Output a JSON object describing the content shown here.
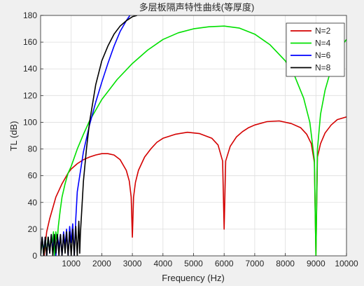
{
  "chart_data": {
    "type": "line",
    "title": "多层板隔声特性曲线(等厚度)",
    "xlabel": "Frequency (Hz)",
    "ylabel": "TL (dB)",
    "xlim": [
      0,
      10000
    ],
    "ylim": [
      0,
      180
    ],
    "xticks": [
      1000,
      2000,
      3000,
      4000,
      5000,
      6000,
      7000,
      8000,
      9000,
      10000
    ],
    "yticks": [
      0,
      20,
      40,
      60,
      80,
      100,
      120,
      140,
      160,
      180
    ],
    "grid": true,
    "legend_position": "top-right",
    "series": [
      {
        "name": "N=2",
        "color": "#d40000",
        "x": [
          120,
          160,
          200,
          300,
          400,
          500,
          700,
          900,
          1000,
          1200,
          1400,
          1600,
          1800,
          2000,
          2200,
          2400,
          2600,
          2800,
          2900,
          2960,
          3000,
          3040,
          3100,
          3200,
          3400,
          3600,
          3800,
          4000,
          4400,
          4800,
          5200,
          5600,
          5800,
          5950,
          6000,
          6050,
          6200,
          6400,
          6600,
          6800,
          7000,
          7400,
          7800,
          8200,
          8500,
          8700,
          8850,
          8950,
          9000,
          9050,
          9150,
          9300,
          9500,
          9700,
          10000
        ],
        "y": [
          0,
          10,
          18,
          28,
          36,
          44,
          54,
          62,
          65,
          69,
          72,
          74,
          75.5,
          76.5,
          76.5,
          75.5,
          72,
          64,
          56,
          44,
          14,
          44,
          55,
          64,
          74,
          80,
          85,
          88,
          91,
          92.5,
          91.5,
          88,
          83,
          71,
          20,
          71,
          82,
          89,
          93,
          96,
          98,
          100.5,
          101,
          99,
          96,
          91,
          84,
          70,
          0,
          74,
          84,
          92,
          98,
          102,
          104
        ]
      },
      {
        "name": "N=4",
        "color": "#00e000",
        "x": [
          0,
          60,
          110,
          160,
          200,
          240,
          290,
          340,
          380,
          420,
          460,
          500,
          540,
          580,
          640,
          700,
          800,
          900,
          1000,
          1200,
          1400,
          1600,
          2000,
          2500,
          3000,
          3500,
          4000,
          4500,
          5000,
          5500,
          6000,
          6500,
          7000,
          7500,
          8000,
          8300,
          8600,
          8800,
          8950,
          9000,
          9050,
          9150,
          9300,
          9500,
          9700,
          9900,
          10000
        ],
        "y": [
          0,
          12,
          2,
          12,
          0,
          14,
          4,
          14,
          8,
          18,
          0,
          18,
          10,
          22,
          34,
          44,
          54,
          62,
          67,
          80,
          91,
          101,
          117,
          132,
          144,
          154,
          162,
          167,
          170,
          171.5,
          172,
          170.5,
          166,
          158,
          146,
          135,
          118,
          100,
          72,
          0,
          80,
          106,
          124,
          140,
          151,
          159,
          162
        ]
      },
      {
        "name": "N=6",
        "color": "#0000ff",
        "x": [
          0,
          50,
          100,
          150,
          200,
          250,
          300,
          350,
          400,
          450,
          500,
          550,
          600,
          650,
          700,
          750,
          800,
          850,
          900,
          950,
          1000,
          1050,
          1100,
          1150,
          1200,
          1400,
          1600,
          1800,
          2000,
          2200,
          2400,
          2600,
          2800,
          2920
        ],
        "y": [
          0,
          14,
          2,
          14,
          0,
          14,
          2,
          16,
          4,
          16,
          0,
          16,
          6,
          16,
          0,
          18,
          8,
          20,
          0,
          22,
          10,
          24,
          0,
          28,
          48,
          78,
          98,
          115,
          130,
          144,
          157,
          168,
          176,
          180
        ]
      },
      {
        "name": "N=8",
        "color": "#000000",
        "x": [
          0,
          50,
          100,
          150,
          200,
          250,
          300,
          350,
          400,
          450,
          500,
          550,
          600,
          650,
          700,
          750,
          800,
          850,
          900,
          950,
          1000,
          1050,
          1100,
          1150,
          1200,
          1250,
          1280,
          1300,
          1400,
          1500,
          1600,
          1800,
          2000,
          2200,
          2400,
          2600,
          2800,
          3000,
          3150
        ],
        "y": [
          0,
          14,
          0,
          14,
          0,
          14,
          2,
          16,
          0,
          16,
          2,
          16,
          0,
          16,
          0,
          16,
          2,
          18,
          0,
          18,
          0,
          20,
          0,
          22,
          0,
          26,
          2,
          16,
          56,
          80,
          100,
          128,
          146,
          157,
          166,
          172,
          176,
          179,
          180
        ]
      }
    ]
  }
}
